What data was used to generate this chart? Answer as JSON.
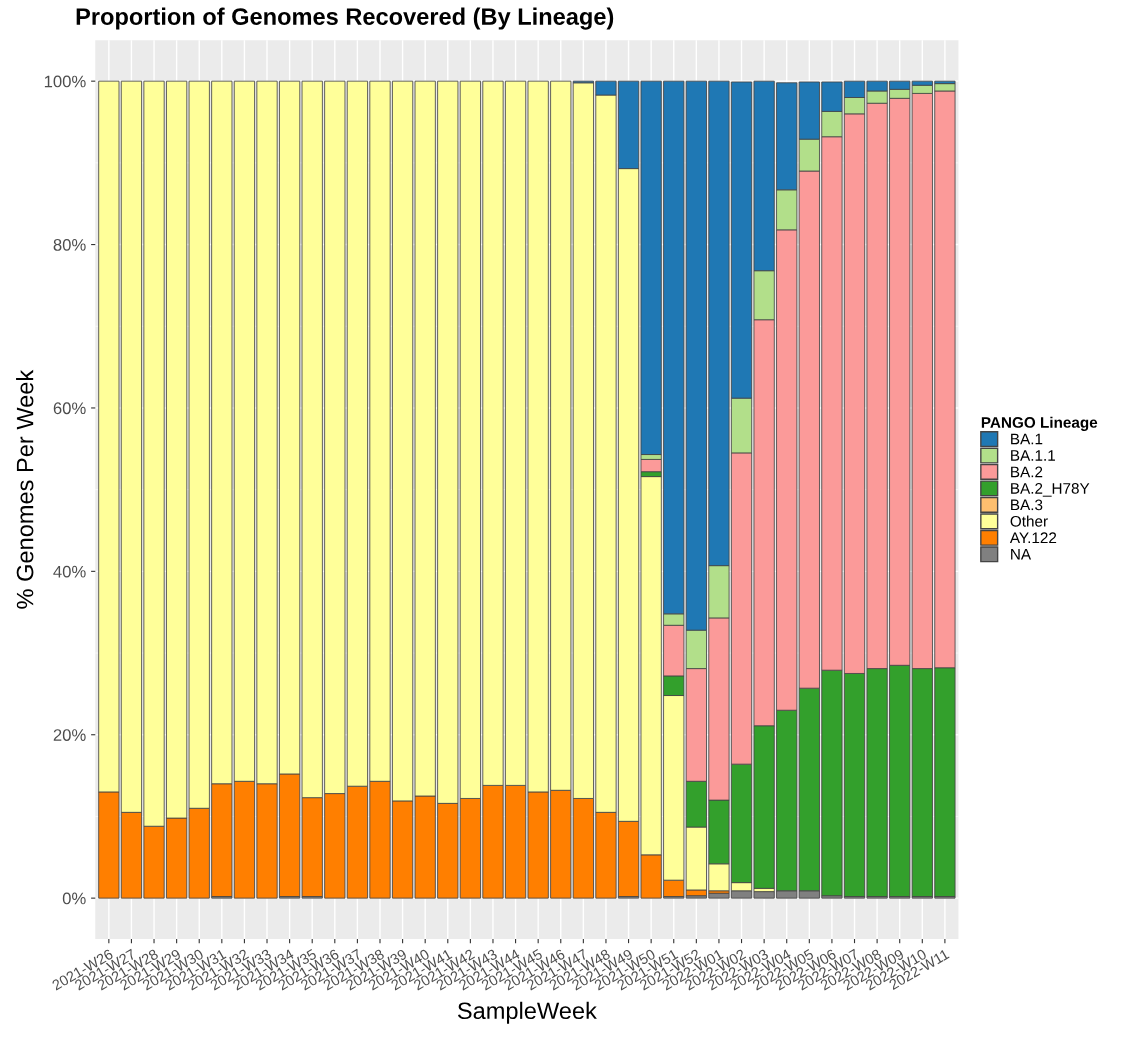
{
  "chart_data": {
    "type": "bar",
    "stacked": true,
    "title": "Proportion of Genomes Recovered (By Lineage)",
    "xlabel": "SampleWeek",
    "ylabel": "% Genomes Per Week",
    "legend_title": "PANGO Lineage",
    "legend": "right",
    "categories": [
      "2021-W26",
      "2021-W27",
      "2021-W28",
      "2021-W29",
      "2021-W30",
      "2021-W31",
      "2021-W32",
      "2021-W33",
      "2021-W34",
      "2021-W35",
      "2021-W36",
      "2021-W37",
      "2021-W38",
      "2021-W39",
      "2021-W40",
      "2021-W41",
      "2021-W42",
      "2021-W43",
      "2021-W44",
      "2021-W45",
      "2021-W46",
      "2021-W47",
      "2021-W48",
      "2021-W49",
      "2021-W50",
      "2021-W51",
      "2021-W52",
      "2022-W01",
      "2022-W02",
      "2022-W03",
      "2022-W04",
      "2022-W05",
      "2022-W06",
      "2022-W07",
      "2022-W08",
      "2022-W09",
      "2022-W10",
      "2022-W11"
    ],
    "series": [
      {
        "name": "NA",
        "color": "#808080",
        "values": [
          0,
          0,
          0,
          0,
          0,
          0.2,
          0,
          0,
          0.2,
          0.2,
          0,
          0,
          0,
          0,
          0,
          0,
          0,
          0,
          0,
          0,
          0,
          0,
          0,
          0.2,
          0,
          0.2,
          0.3,
          0.6,
          0.9,
          0.8,
          0.9,
          0.9,
          0.3,
          0.2,
          0.2,
          0.2,
          0.2,
          0.2
        ]
      },
      {
        "name": "AY.122",
        "color": "#ff7f00",
        "values": [
          13.0,
          10.5,
          8.8,
          9.8,
          11.0,
          13.8,
          14.3,
          14.0,
          15.0,
          12.1,
          12.8,
          13.7,
          14.3,
          11.9,
          12.5,
          11.6,
          12.2,
          13.8,
          13.8,
          13.0,
          13.2,
          12.2,
          10.5,
          9.2,
          5.3,
          2.0,
          0.7,
          0.3,
          null,
          0,
          0,
          0,
          0,
          0,
          0,
          0,
          0,
          0
        ]
      },
      {
        "name": "Other",
        "color": "#ffff99",
        "values": [
          87.0,
          89.5,
          91.2,
          90.2,
          89.0,
          86.0,
          85.7,
          86.0,
          84.8,
          87.7,
          87.2,
          86.3,
          85.7,
          88.1,
          87.5,
          88.4,
          87.8,
          86.2,
          86.2,
          87.0,
          86.8,
          87.6,
          87.8,
          79.9,
          46.3,
          22.6,
          7.7,
          3.3,
          1.0,
          0.4,
          null,
          null,
          null,
          0,
          0,
          0,
          0,
          0
        ]
      },
      {
        "name": "BA.3",
        "color": "#fdbf6f",
        "values": [
          0,
          0,
          0,
          0,
          0,
          0,
          0,
          0,
          0,
          0,
          0,
          0,
          0,
          0,
          0,
          0,
          0,
          0,
          0,
          0,
          0,
          0,
          0,
          0,
          0,
          0,
          0,
          0,
          0,
          0,
          0,
          0,
          0,
          0,
          0,
          0,
          0,
          0
        ]
      },
      {
        "name": "BA.2_H78Y",
        "color": "#33a02c",
        "values": [
          0,
          0,
          0,
          0,
          0,
          0,
          0,
          0,
          0,
          0,
          0,
          0,
          0,
          0,
          0,
          0,
          0,
          0,
          0,
          0,
          0,
          0,
          0,
          0,
          0.6,
          2.4,
          5.6,
          7.8,
          14.5,
          19.9,
          22.1,
          24.8,
          27.6,
          27.3,
          27.9,
          28.3,
          27.9,
          28.0
        ]
      },
      {
        "name": "BA.2",
        "color": "#fb9a99",
        "values": [
          0,
          0,
          0,
          0,
          0,
          0,
          0,
          0,
          0,
          0,
          0,
          0,
          0,
          0,
          0,
          0,
          0,
          0,
          0,
          0,
          0,
          0,
          0,
          0,
          1.5,
          6.2,
          13.8,
          22.3,
          38.1,
          49.7,
          58.8,
          63.3,
          65.3,
          68.5,
          69.2,
          69.4,
          70.4,
          70.6
        ]
      },
      {
        "name": "BA.1.1",
        "color": "#b2df8a",
        "values": [
          0,
          0,
          0,
          0,
          0,
          0,
          0,
          0,
          0,
          0,
          0,
          0,
          0,
          0,
          0,
          0,
          0,
          0,
          0,
          0,
          0,
          0,
          0,
          0,
          0.6,
          1.4,
          4.7,
          6.4,
          6.7,
          6.0,
          4.9,
          3.9,
          3.1,
          2.0,
          1.5,
          1.1,
          1.0,
          0.9
        ]
      },
      {
        "name": "BA.1",
        "color": "#1f78b4",
        "values": [
          0,
          0,
          0,
          0,
          0,
          0,
          0,
          0,
          0,
          0,
          0,
          0,
          0,
          0,
          0,
          0,
          0,
          0,
          0,
          0,
          0,
          0.2,
          1.7,
          10.7,
          45.7,
          65.2,
          67.2,
          59.3,
          38.7,
          23.2,
          13.1,
          7.0,
          3.6,
          2.0,
          1.2,
          1.0,
          0.5,
          0.3
        ]
      }
    ],
    "ylim": [
      -5,
      105
    ],
    "yticks": [
      {
        "value": 0,
        "label": "0%"
      },
      {
        "value": 20,
        "label": "20%"
      },
      {
        "value": 40,
        "label": "40%"
      },
      {
        "value": 60,
        "label": "60%"
      },
      {
        "value": 80,
        "label": "80%"
      },
      {
        "value": 100,
        "label": "100%"
      }
    ],
    "grid": true
  }
}
